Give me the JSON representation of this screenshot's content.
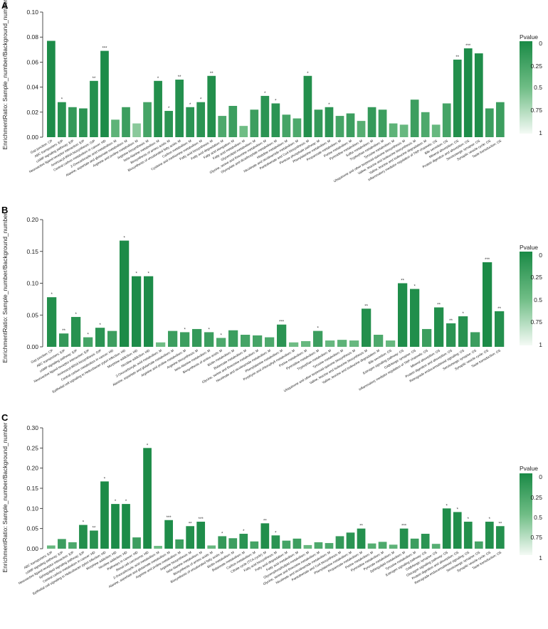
{
  "legend": {
    "title": "Pvalue",
    "ticks": [
      "0",
      "0.25",
      "0.5",
      "0.75",
      "1"
    ]
  },
  "colors": {
    "dark": "#1a8a46",
    "light": "#f4faf5",
    "axis": "#222222"
  },
  "chart_data": [
    {
      "panel": "A",
      "type": "bar",
      "ylabel": "EnrichmentRatio: Sample_number/Background_number",
      "ylim": [
        0,
        0.1
      ],
      "yticks": [
        "0.00",
        "0.02",
        "0.04",
        "0.06",
        "0.08",
        "0.10"
      ],
      "categories": [
        "Gap junction: CP",
        "ABC transporters: EIP",
        "cAMP signaling pathway: EIP",
        "Neuroactive ligand-receptor interaction: EIP",
        "Aminoacyl-tRNA biosynthesis: GIP",
        "Central carbon metabolism in cancer: HD",
        "2-Oxocarboxylic acid metabolism: M",
        "Alanine, aspartate and glutamate metabolism: M",
        "Arginine and proline metabolism: M",
        "Arginine biosynthesis: M",
        "beta-Alanine metabolism: M",
        "Biosynthesis of amino acids: M",
        "Biosynthesis of unsaturated fatty acids: M",
        "Carbon metabolism: M",
        "Cysteine and methionine metabolism: M",
        "Fatty acid biosynthesis: M",
        "Fatty acid degradation: M",
        "Fatty acid elongation: M",
        "Fatty acid metabolism: M",
        "Glycerolipid metabolism: M",
        "Glycine, serine and threonine metabolism: M",
        "Glyoxylate and dicarboxylate metabolism: M",
        "Histidine metabolism: M",
        "Nicotinate and nicotinamide metabolism: M",
        "Pantothenate and CoA biosynthesis: M",
        "Pentose phosphate pathway: M",
        "Phenylalanine metabolism: M",
        "Propanoate metabolism: M",
        "Purine metabolism: M",
        "Pyrimidine metabolism: M",
        "Sulfur metabolism: M",
        "Tryptophan metabolism: M",
        "Tyrosine metabolism: M",
        "Ubiquinone and other terpenoid-quinone biosynthesis: M",
        "Valine, leucine and isoleucine biosynthesis: M",
        "Valine, leucine and isoleucine degradation: M",
        "Inflammatory mediator regulation of TRP channels: OS",
        "Bile secretion: OS",
        "Mineral absorption: OS",
        "Protein digestion and absorption: OS",
        "Serotonergic synapse: OS",
        "Synaptic vesicle cycle: OS",
        "Taste transduction: OS"
      ],
      "values": [
        0.077,
        0.028,
        0.024,
        0.023,
        0.045,
        0.069,
        0.014,
        0.024,
        0.011,
        0.028,
        0.045,
        0.021,
        0.046,
        0.024,
        0.028,
        0.049,
        0.017,
        0.025,
        0.009,
        0.022,
        0.033,
        0.027,
        0.018,
        0.015,
        0.049,
        0.022,
        0.024,
        0.017,
        0.019,
        0.013,
        0.024,
        0.022,
        0.011,
        0.01,
        0.03,
        0.02,
        0.01,
        0.027,
        0.062,
        0.071,
        0.067,
        0.023,
        0.028
      ],
      "pvalues": [
        0.02,
        0.08,
        0.15,
        0.1,
        0.06,
        0.02,
        0.4,
        0.2,
        0.6,
        0.25,
        0.05,
        0.1,
        0.06,
        0.1,
        0.1,
        0.05,
        0.3,
        0.2,
        0.5,
        0.2,
        0.1,
        0.1,
        0.25,
        0.3,
        0.05,
        0.15,
        0.1,
        0.25,
        0.2,
        0.35,
        0.15,
        0.2,
        0.4,
        0.45,
        0.2,
        0.3,
        0.45,
        0.25,
        0.05,
        0.02,
        0.03,
        0.2,
        0.2
      ],
      "stars": [
        "",
        "*",
        "",
        "",
        "**",
        "***",
        "",
        "",
        "",
        "",
        "*",
        "*",
        "**",
        "*",
        "*",
        "**",
        "",
        "",
        "",
        "",
        "*",
        "*",
        "",
        "",
        "*",
        "",
        "*",
        "",
        "",
        "",
        "",
        "",
        "",
        "",
        "",
        "",
        "",
        "",
        "**",
        "***",
        "",
        "",
        ""
      ]
    },
    {
      "panel": "B",
      "type": "bar",
      "ylabel": "EnrichmentRatio: Sample_number/Background_number",
      "ylim": [
        0,
        0.2
      ],
      "yticks": [
        "0.00",
        "0.05",
        "0.10",
        "0.15",
        "0.20"
      ],
      "categories": [
        "Gap junction: CP",
        "ABC transporters: EIP",
        "cAMP signaling pathway: EIP",
        "Neuroactive ligand-receptor interaction: EIP",
        "Aminoacyl-tRNA biosynthesis: GIP",
        "Central carbon metabolism in cancer: HD",
        "Epithelial cell signaling in Helicobacter pylori infection: HD",
        "Morphine addiction: HD",
        "Nicotine addiction: HD",
        "2-Oxocarboxylic acid metabolism: M",
        "Alanine, aspartate and glutamate metabolism: M",
        "Arginine and proline metabolism: M",
        "Arginine biosynthesis: M",
        "beta-Alanine metabolism: M",
        "Biosynthesis of amino acids: M",
        "Biotin metabolism: M",
        "Butanoate metabolism: M",
        "Glycine, serine and threonine metabolism: M",
        "Nicotinate and nicotinamide metabolism: M",
        "Phenylalanine metabolism: M",
        "Porphyrin and chlorophyll metabolism: M",
        "Purine metabolism: M",
        "Pyrimidine metabolism: M",
        "Tryptophan metabolism: M",
        "Tyrosine metabolism: M",
        "Ubiquinone and other terpenoid-quinone biosynthesis: M",
        "Valine, leucine and isoleucine biosynthesis: M",
        "Valine, leucine and isoleucine degradation: M",
        "Bile secretion: OS",
        "Estrogen signaling pathway: OS",
        "GABAergic synapse: OS",
        "Inflammatory mediator regulation of TRP channels: OS",
        "Mineral absorption: OS",
        "Protein digestion and absorption: OS",
        "Retrograde endocannabinoid signaling: OS",
        "Serotonergic synapse: OS",
        "Synaptic vesicle cycle: OS",
        "Taste transduction: OS"
      ],
      "values": [
        0.078,
        0.021,
        0.047,
        0.015,
        0.03,
        0.025,
        0.167,
        0.111,
        0.111,
        0.007,
        0.025,
        0.023,
        0.028,
        0.023,
        0.014,
        0.026,
        0.019,
        0.018,
        0.015,
        0.035,
        0.007,
        0.009,
        0.025,
        0.01,
        0.011,
        0.01,
        0.06,
        0.019,
        0.01,
        0.1,
        0.091,
        0.028,
        0.062,
        0.037,
        0.048,
        0.023,
        0.133,
        0.056
      ],
      "pvalues": [
        0.05,
        0.15,
        0.08,
        0.25,
        0.1,
        0.2,
        0.01,
        0.02,
        0.02,
        0.5,
        0.2,
        0.2,
        0.15,
        0.2,
        0.3,
        0.2,
        0.25,
        0.25,
        0.3,
        0.1,
        0.5,
        0.45,
        0.2,
        0.45,
        0.4,
        0.45,
        0.05,
        0.3,
        0.45,
        0.03,
        0.04,
        0.2,
        0.05,
        0.1,
        0.08,
        0.2,
        0.01,
        0.06
      ],
      "stars": [
        "*",
        "**",
        "*",
        "*",
        "*",
        "",
        "*",
        "*",
        "*",
        "",
        "",
        "*",
        "",
        "*",
        "*",
        "",
        "",
        "",
        "",
        "***",
        "",
        "",
        "*",
        "",
        "",
        "",
        "**",
        "",
        "",
        "**",
        "*",
        "",
        "**",
        "**",
        "*",
        "",
        "***",
        "**"
      ]
    },
    {
      "panel": "C",
      "type": "bar",
      "ylabel": "EnrichmentRatio: Sample_number/Background_number",
      "ylim": [
        0,
        0.3
      ],
      "yticks": [
        "0.00",
        "0.05",
        "0.10",
        "0.15",
        "0.20",
        "0.25",
        "0.30"
      ],
      "categories": [
        "ABC transporters: EIP",
        "cAMP signaling pathway: EIP",
        "Neuroactive ligand-receptor interaction: EIP",
        "Sphingolipid signaling pathway: EIP",
        "Central carbon metabolism in cancer: HD",
        "Epithelial cell signaling in Helicobacter pylori infection: HD",
        "Morphine addiction: HD",
        "Nicotine addiction: HD",
        "Pathways in cancer: HD",
        "Renal cell carcinoma: HD",
        "2-Oxocarboxylic acid metabolism: M",
        "Alanine, aspartate and glutamate metabolism: M",
        "Arginine and proline metabolism: M",
        "Arginine biosynthesis: M",
        "beta-Alanine metabolism: M",
        "Biosynthesis of amino acids: M",
        "Biosynthesis of unsaturated fatty acids: M",
        "Biotin metabolism: M",
        "Butanoate metabolism: M",
        "Carbon metabolism: M",
        "Citrate cycle (TCA cycle): M",
        "Fatty acid biosynthesis: M",
        "Fatty acid degradation: M",
        "Fatty acid metabolism: M",
        "Glycerophospholipid metabolism: M",
        "Glycine, serine and threonine metabolism: M",
        "Nicotinate and nicotinamide metabolism: M",
        "Pantothenate and CoA biosynthesis: M",
        "Phenylalanine metabolism: M",
        "Propanoate metabolism: M",
        "Purine metabolism: M",
        "Pyrimidine metabolism: M",
        "Pyruvate metabolism: M",
        "Sphingolipid metabolism: M",
        "Tyrosine metabolism: M",
        "Estrogen signaling pathway: OS",
        "GABAergic synapse: OS",
        "Glucagon signaling pathway: OS",
        "Protein digestion and absorption: OS",
        "Retrograde endocannabinoid signaling: OS",
        "Serotonergic synapse: OS",
        "Synaptic vesicle cycle: OS",
        "Taste transduction: OS"
      ],
      "values": [
        0.008,
        0.024,
        0.016,
        0.059,
        0.045,
        0.167,
        0.111,
        0.111,
        0.028,
        0.25,
        0.007,
        0.071,
        0.023,
        0.056,
        0.067,
        0.008,
        0.031,
        0.026,
        0.037,
        0.018,
        0.063,
        0.033,
        0.02,
        0.025,
        0.009,
        0.016,
        0.014,
        0.031,
        0.04,
        0.05,
        0.013,
        0.017,
        0.01,
        0.05,
        0.025,
        0.037,
        0.012,
        0.1,
        0.091,
        0.067,
        0.018,
        0.067,
        0.056
      ],
      "pvalues": [
        0.45,
        0.2,
        0.3,
        0.05,
        0.08,
        0.01,
        0.02,
        0.02,
        0.2,
        0.01,
        0.5,
        0.03,
        0.2,
        0.05,
        0.03,
        0.45,
        0.15,
        0.2,
        0.1,
        0.25,
        0.04,
        0.1,
        0.25,
        0.2,
        0.45,
        0.3,
        0.3,
        0.15,
        0.1,
        0.06,
        0.35,
        0.3,
        0.4,
        0.06,
        0.2,
        0.1,
        0.35,
        0.03,
        0.04,
        0.05,
        0.25,
        0.05,
        0.06
      ],
      "stars": [
        "",
        "",
        "",
        "*",
        "**",
        "*",
        "*",
        "*",
        "",
        "*",
        "",
        "***",
        "",
        "**",
        "***",
        "",
        "*",
        "",
        "*",
        "",
        "**",
        "*",
        "",
        "",
        "",
        "",
        "",
        "",
        "",
        "**",
        "",
        "",
        "",
        "***",
        "",
        "",
        "",
        "*",
        "*",
        "*",
        "",
        "*",
        "**"
      ]
    }
  ]
}
